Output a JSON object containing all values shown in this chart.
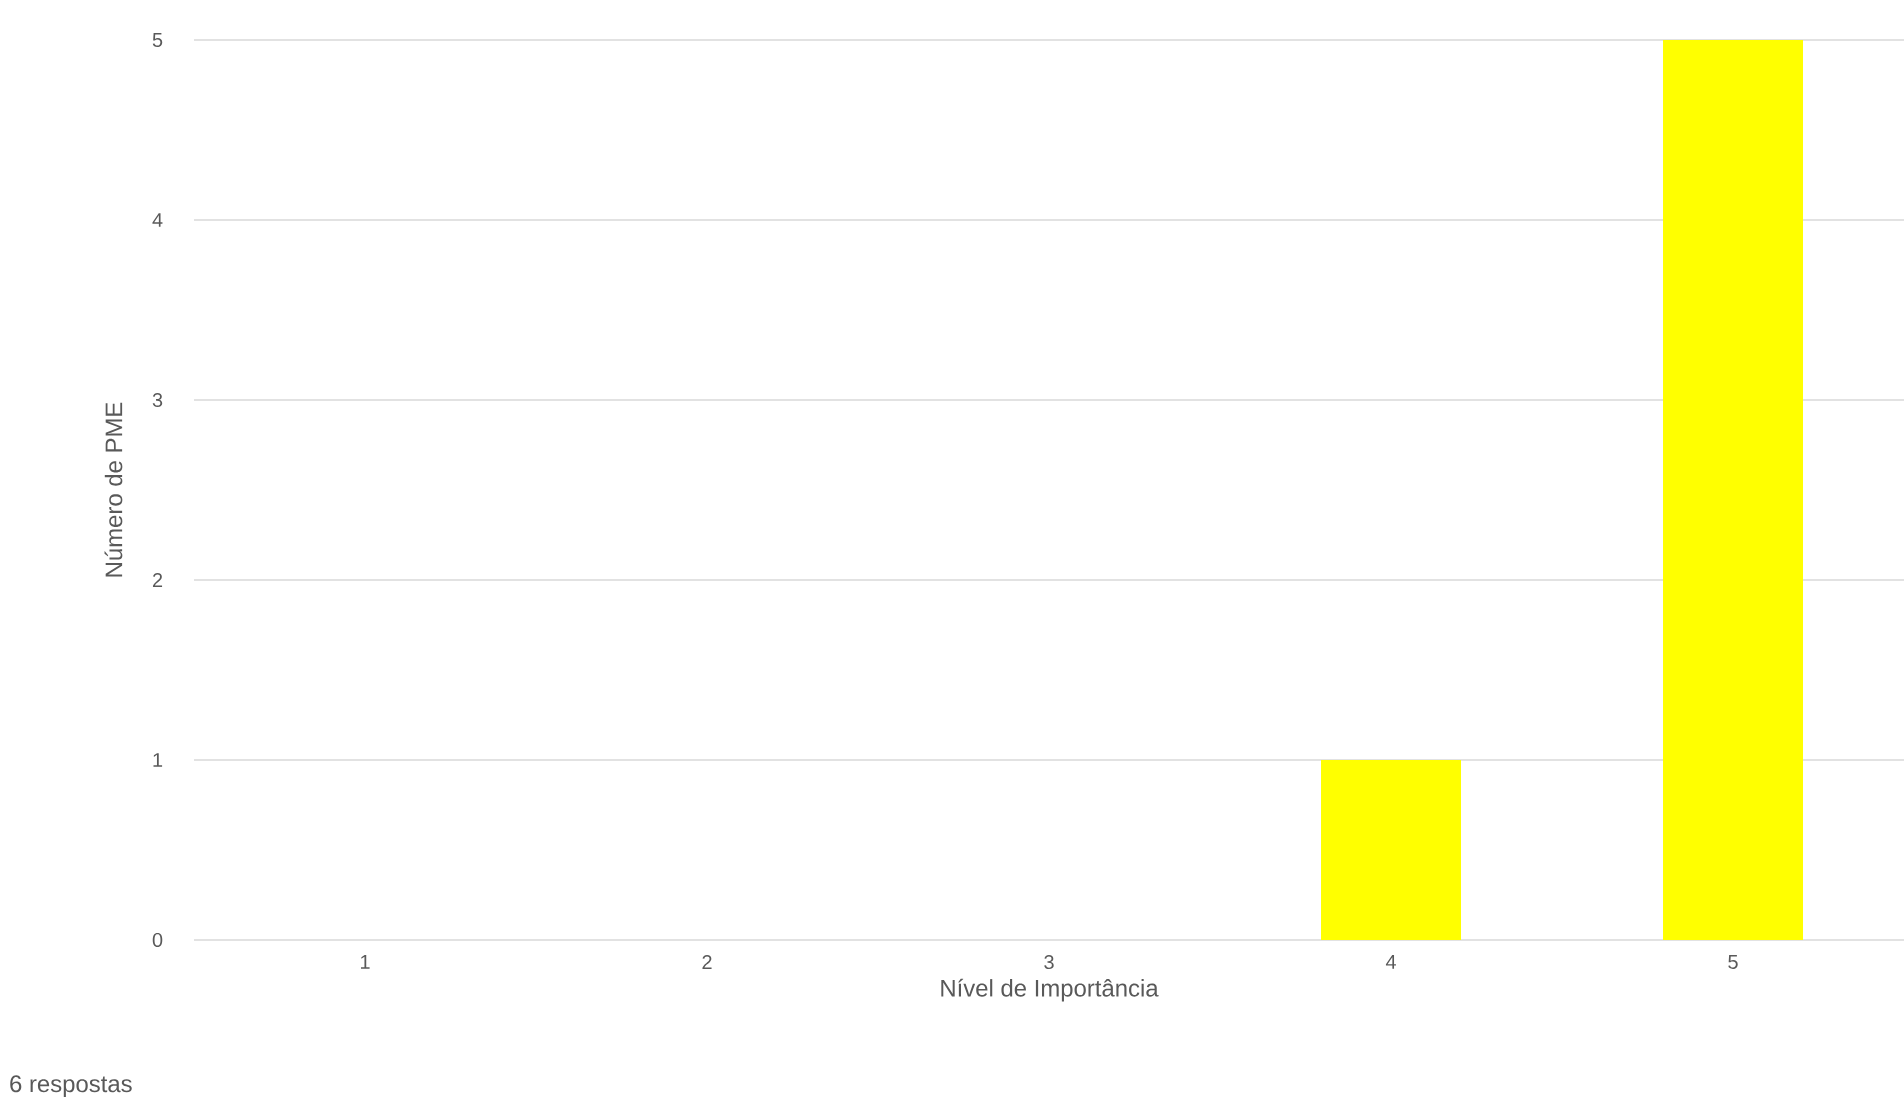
{
  "chart_data": {
    "type": "bar",
    "xlabel": "Nível de Importância",
    "ylabel": "Número de PME",
    "categories": [
      "1",
      "2",
      "3",
      "4",
      "5"
    ],
    "values": [
      0,
      0,
      0,
      1,
      5
    ],
    "color": "#ffff00",
    "ylim": [
      0,
      5
    ],
    "yticks": [
      0,
      1,
      2,
      3,
      4,
      5
    ],
    "grid": "y",
    "annotations": [
      "6 respostas"
    ]
  }
}
